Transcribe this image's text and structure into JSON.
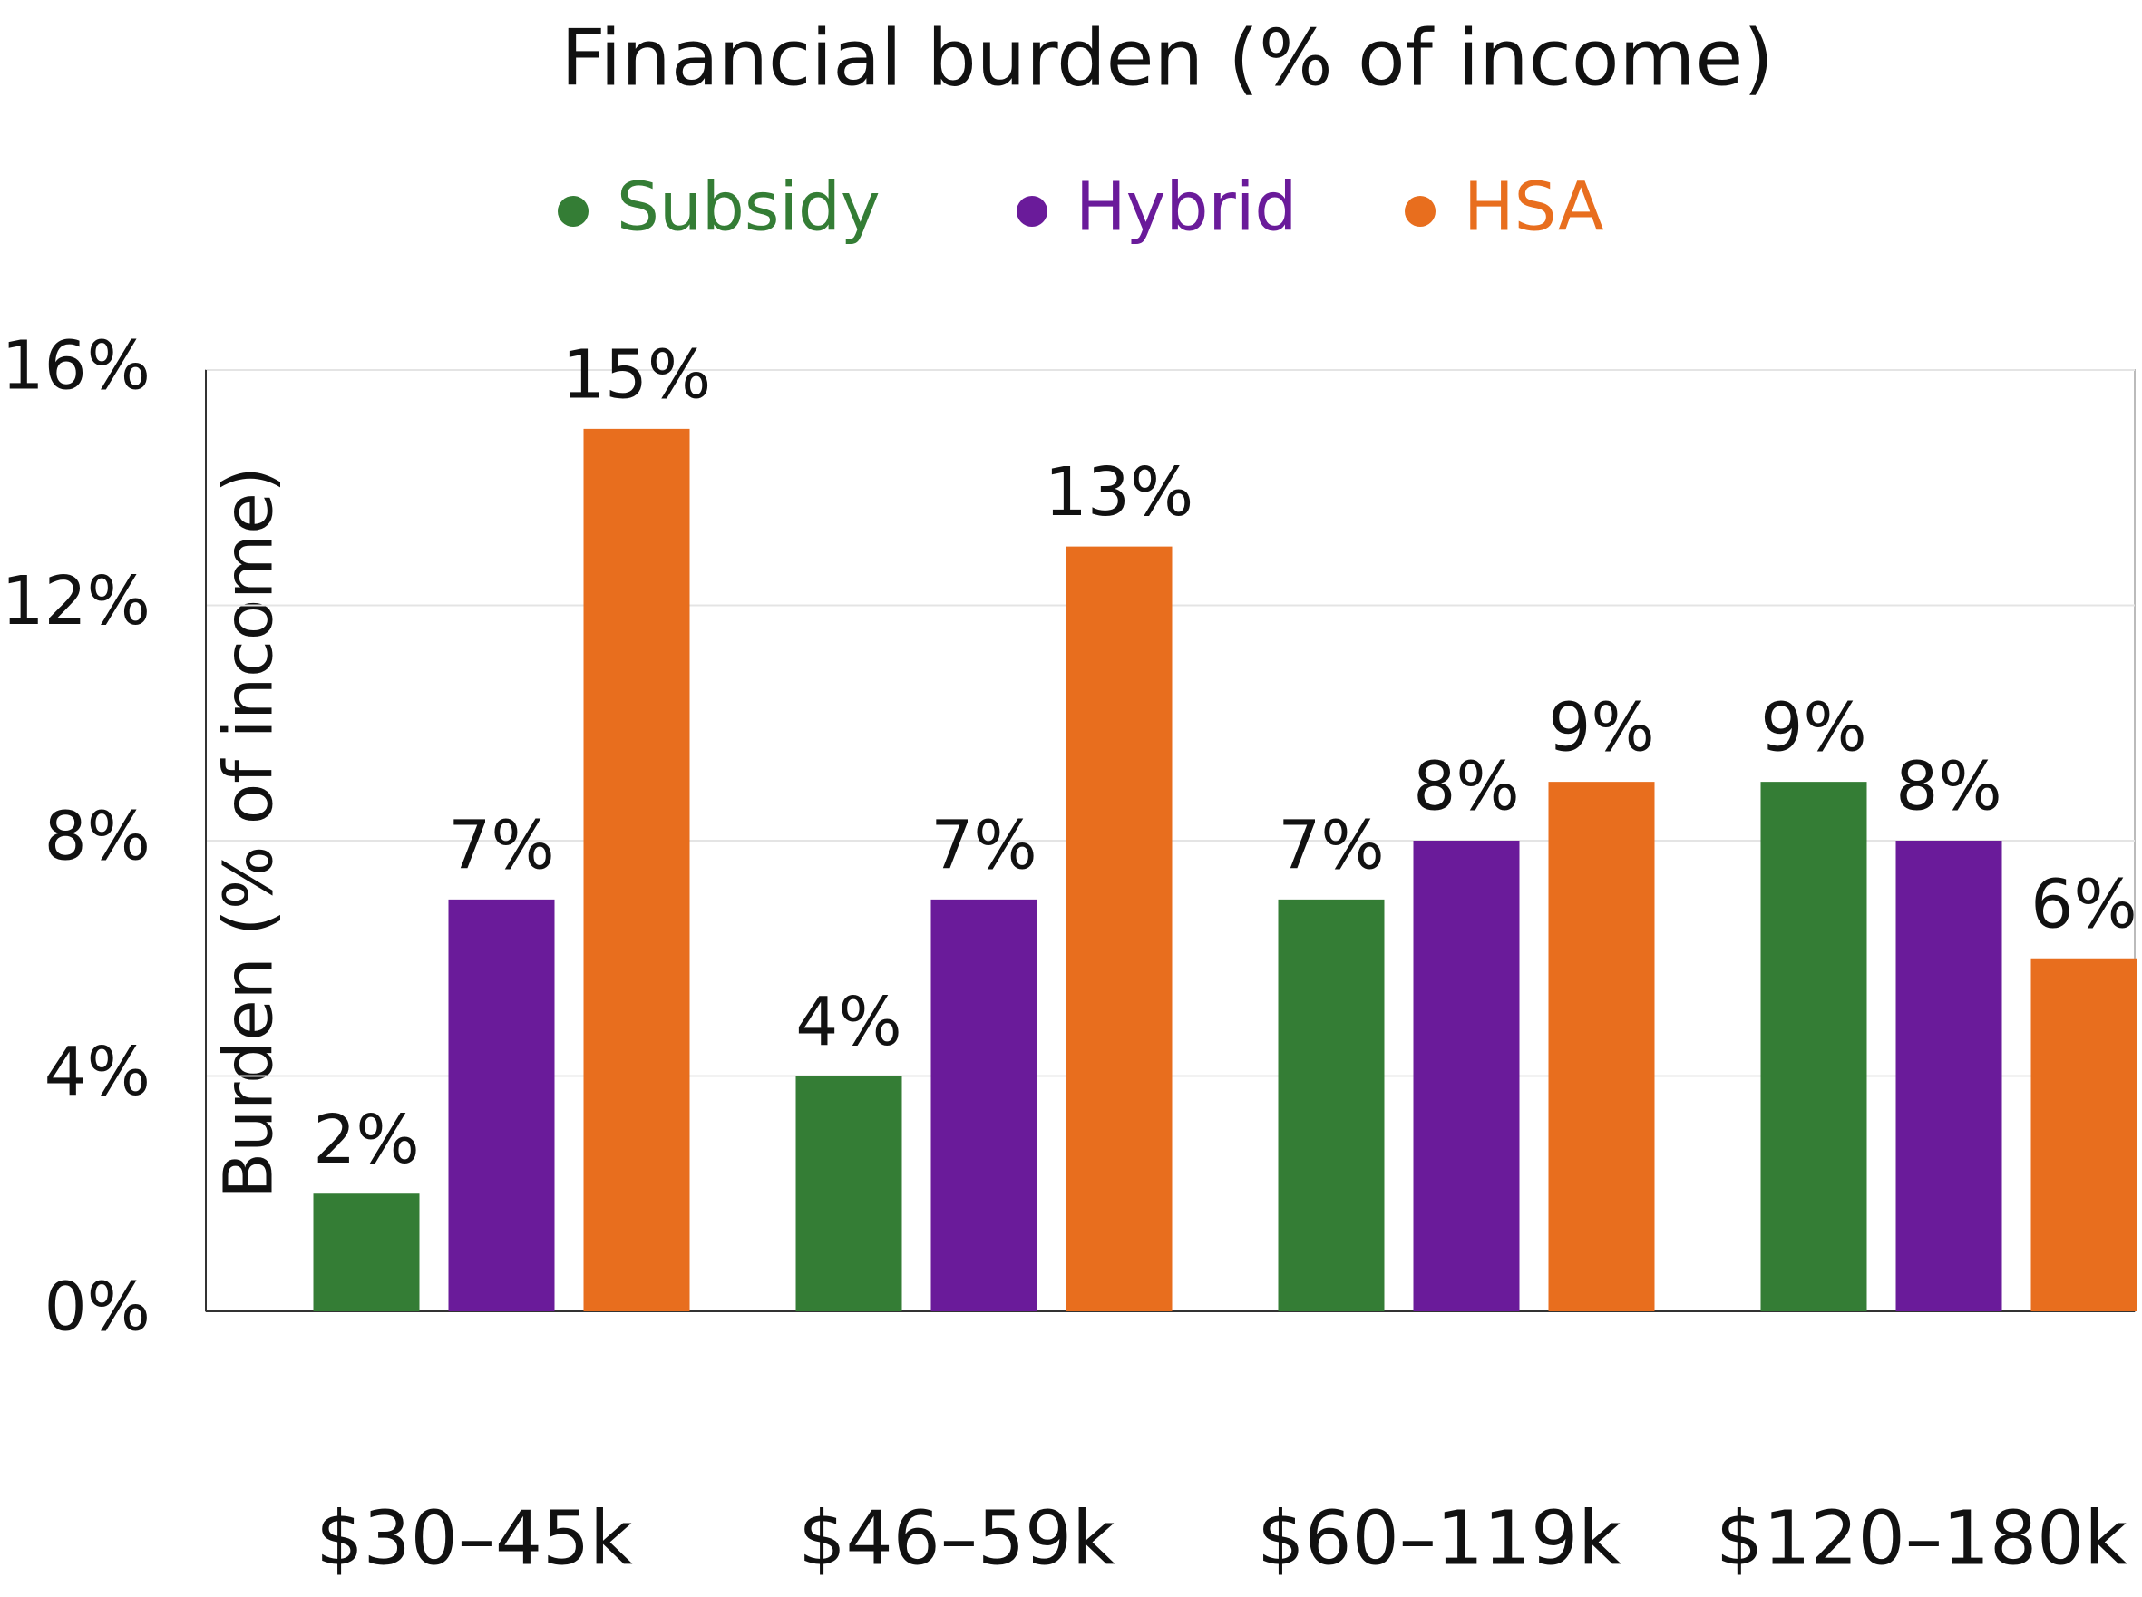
{
  "chart_data": {
    "type": "bar",
    "title": "Financial burden (% of income)",
    "y_label": "Burden (% of income)",
    "categories": [
      "$30–45k",
      "$46–59k",
      "$60–119k",
      "$120–180k"
    ],
    "series": [
      {
        "name": "Subsidy",
        "color": "#347d35",
        "values": [
          2,
          4,
          7,
          9
        ],
        "value_labels": [
          "2%",
          "4%",
          "7%",
          "9%"
        ]
      },
      {
        "name": "Hybrid",
        "color": "#6a1b9a",
        "values": [
          7,
          7,
          8,
          8
        ],
        "value_labels": [
          "7%",
          "7%",
          "8%",
          "8%"
        ]
      },
      {
        "name": "HSA",
        "color": "#e86e1e",
        "values": [
          15,
          13,
          9,
          6
        ],
        "value_labels": [
          "15%",
          "13%",
          "9%",
          "6%"
        ]
      }
    ],
    "ylim": [
      0,
      16
    ],
    "yticks": [
      {
        "value": 0,
        "label": "0%"
      },
      {
        "value": 4,
        "label": "4%"
      },
      {
        "value": 8,
        "label": "8%"
      },
      {
        "value": 12,
        "label": "12%"
      },
      {
        "value": 16,
        "label": "16%"
      }
    ],
    "grid": true
  }
}
